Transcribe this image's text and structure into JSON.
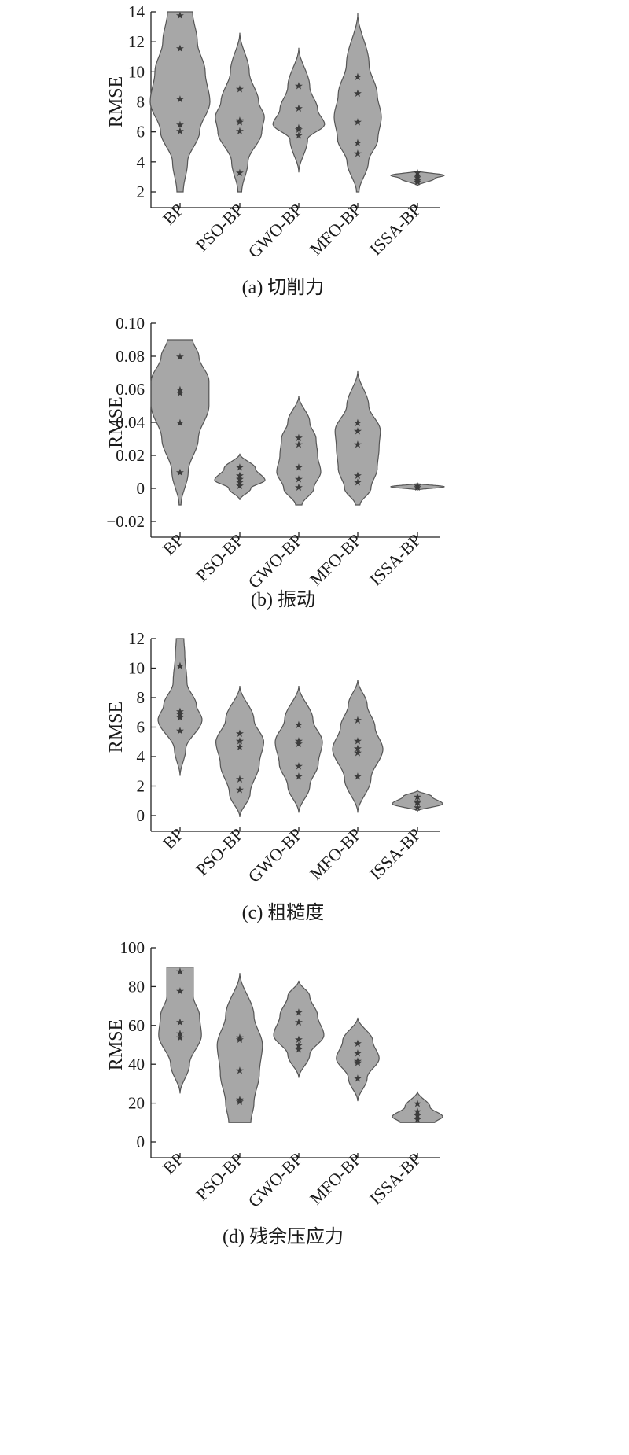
{
  "chart_data": [
    {
      "type": "violin",
      "caption": "(a) 切削力",
      "ylabel": "RMSE",
      "ylim": [
        2,
        14
      ],
      "yticks": [
        2,
        4,
        6,
        8,
        10,
        12,
        14
      ],
      "ytick_labels": [
        "2",
        "4",
        "6",
        "8",
        "10",
        "12",
        "14"
      ],
      "categories": [
        "BP",
        "PSO-BP",
        "GWO-BP",
        "MFO-BP",
        "ISSA-BP"
      ],
      "series": [
        {
          "points": [
            13.8,
            11.6,
            8.2,
            6.5,
            6.1
          ],
          "profile": [
            [
              2,
              0.1
            ],
            [
              4,
              0.24
            ],
            [
              6,
              0.62
            ],
            [
              8,
              0.95
            ],
            [
              10,
              0.8
            ],
            [
              12,
              0.55
            ],
            [
              14,
              0.4
            ]
          ]
        },
        {
          "points": [
            8.9,
            6.8,
            6.7,
            6.1,
            3.3
          ],
          "profile": [
            [
              2,
              0.06
            ],
            [
              4,
              0.26
            ],
            [
              6,
              0.7
            ],
            [
              7,
              0.78
            ],
            [
              8,
              0.6
            ],
            [
              10,
              0.3
            ],
            [
              12.6,
              0.0
            ]
          ]
        },
        {
          "points": [
            9.1,
            7.6,
            6.3,
            6.2,
            5.8
          ],
          "profile": [
            [
              3.3,
              0.0
            ],
            [
              5.5,
              0.28
            ],
            [
              6.5,
              0.82
            ],
            [
              7.5,
              0.6
            ],
            [
              9,
              0.35
            ],
            [
              11.6,
              0.0
            ]
          ]
        },
        {
          "points": [
            9.7,
            8.6,
            6.7,
            5.3,
            4.6
          ],
          "profile": [
            [
              2,
              0.04
            ],
            [
              4,
              0.34
            ],
            [
              5.5,
              0.64
            ],
            [
              7,
              0.75
            ],
            [
              8.5,
              0.62
            ],
            [
              10.5,
              0.36
            ],
            [
              13.9,
              0.0
            ]
          ]
        },
        {
          "points": [
            3.3,
            3.1,
            3.0,
            2.8,
            2.7
          ],
          "profile": [
            [
              2.4,
              0.0
            ],
            [
              2.9,
              0.55
            ],
            [
              3.1,
              0.85
            ],
            [
              3.4,
              0.0
            ]
          ]
        }
      ]
    },
    {
      "type": "violin",
      "caption": "(b) 振动",
      "ylabel": "RMSE",
      "ylim": [
        -0.02,
        0.1
      ],
      "yticks": [
        -0.02,
        0,
        0.02,
        0.04,
        0.06,
        0.08,
        0.1
      ],
      "ytick_labels": [
        "−0.02",
        "0",
        "0.02",
        "0.04",
        "0.06",
        "0.08",
        "0.10"
      ],
      "categories": [
        "BP",
        "PSO-BP",
        "GWO-BP",
        "MFO-BP",
        "ISSA-BP"
      ],
      "series": [
        {
          "points": [
            0.08,
            0.06,
            0.058,
            0.04,
            0.01
          ],
          "profile": [
            [
              -0.01,
              0.03
            ],
            [
              0.01,
              0.26
            ],
            [
              0.03,
              0.58
            ],
            [
              0.05,
              0.92
            ],
            [
              0.065,
              0.92
            ],
            [
              0.08,
              0.6
            ],
            [
              0.09,
              0.4
            ]
          ]
        },
        {
          "points": [
            0.013,
            0.008,
            0.006,
            0.004,
            0.002
          ],
          "profile": [
            [
              -0.007,
              0.0
            ],
            [
              0.0,
              0.35
            ],
            [
              0.005,
              0.8
            ],
            [
              0.012,
              0.5
            ],
            [
              0.021,
              0.0
            ]
          ]
        },
        {
          "points": [
            0.031,
            0.027,
            0.013,
            0.006,
            0.001
          ],
          "profile": [
            [
              -0.01,
              0.1
            ],
            [
              0.0,
              0.48
            ],
            [
              0.01,
              0.7
            ],
            [
              0.02,
              0.6
            ],
            [
              0.03,
              0.55
            ],
            [
              0.04,
              0.35
            ],
            [
              0.056,
              0.0
            ]
          ]
        },
        {
          "points": [
            0.04,
            0.035,
            0.027,
            0.008,
            0.004
          ],
          "profile": [
            [
              -0.01,
              0.07
            ],
            [
              0.0,
              0.42
            ],
            [
              0.012,
              0.62
            ],
            [
              0.025,
              0.68
            ],
            [
              0.035,
              0.72
            ],
            [
              0.05,
              0.35
            ],
            [
              0.071,
              0.0
            ]
          ]
        },
        {
          "points": [
            0.002,
            0.001
          ],
          "profile": [
            [
              -0.001,
              0.0
            ],
            [
              0.001,
              0.85
            ],
            [
              0.003,
              0.0
            ]
          ]
        }
      ]
    },
    {
      "type": "violin",
      "caption": "(c) 粗糙度",
      "ylabel": "RMSE",
      "ylim": [
        0,
        12
      ],
      "yticks": [
        0,
        2,
        4,
        6,
        8,
        10,
        12
      ],
      "ytick_labels": [
        "0",
        "2",
        "4",
        "6",
        "8",
        "10",
        "12"
      ],
      "categories": [
        "BP",
        "PSO-BP",
        "GWO-BP",
        "MFO-BP",
        "ISSA-BP"
      ],
      "series": [
        {
          "points": [
            10.2,
            7.1,
            6.9,
            6.7,
            5.8
          ],
          "profile": [
            [
              2.7,
              0.0
            ],
            [
              4.5,
              0.18
            ],
            [
              6.5,
              0.7
            ],
            [
              7.5,
              0.52
            ],
            [
              9,
              0.22
            ],
            [
              11,
              0.15
            ],
            [
              12,
              0.12
            ]
          ]
        },
        {
          "points": [
            5.6,
            5.1,
            4.7,
            2.5,
            1.8
          ],
          "profile": [
            [
              -0.1,
              0.0
            ],
            [
              1.5,
              0.33
            ],
            [
              3.5,
              0.62
            ],
            [
              5,
              0.76
            ],
            [
              6.5,
              0.45
            ],
            [
              8.8,
              0.0
            ]
          ]
        },
        {
          "points": [
            6.2,
            5.1,
            4.9,
            3.4,
            2.7
          ],
          "profile": [
            [
              0.2,
              0.0
            ],
            [
              2,
              0.35
            ],
            [
              3.5,
              0.62
            ],
            [
              5,
              0.75
            ],
            [
              6.5,
              0.45
            ],
            [
              8.8,
              0.0
            ]
          ]
        },
        {
          "points": [
            6.5,
            5.1,
            4.6,
            4.3,
            2.7
          ],
          "profile": [
            [
              0.2,
              0.0
            ],
            [
              2.5,
              0.42
            ],
            [
              4.5,
              0.8
            ],
            [
              6,
              0.55
            ],
            [
              7.5,
              0.3
            ],
            [
              9.2,
              0.0
            ]
          ]
        },
        {
          "points": [
            1.3,
            1.0,
            0.9,
            0.6
          ],
          "profile": [
            [
              0.3,
              0.0
            ],
            [
              0.8,
              0.8
            ],
            [
              1.3,
              0.45
            ],
            [
              1.7,
              0.0
            ]
          ]
        }
      ]
    },
    {
      "type": "violin",
      "caption": "(d) 残余压应力",
      "ylabel": "RMSE",
      "ylim": [
        0,
        100
      ],
      "yticks": [
        0,
        20,
        40,
        60,
        80,
        100
      ],
      "ytick_labels": [
        "0",
        "20",
        "40",
        "60",
        "80",
        "100"
      ],
      "categories": [
        "BP",
        "PSO-BP",
        "GWO-BP",
        "MFO-BP",
        "ISSA-BP"
      ],
      "series": [
        {
          "points": [
            88,
            78,
            62,
            56,
            54
          ],
          "profile": [
            [
              25,
              0.0
            ],
            [
              40,
              0.3
            ],
            [
              55,
              0.68
            ],
            [
              65,
              0.62
            ],
            [
              75,
              0.42
            ],
            [
              90,
              0.42
            ]
          ]
        },
        {
          "points": [
            54,
            53,
            37,
            22,
            21
          ],
          "profile": [
            [
              10,
              0.35
            ],
            [
              20,
              0.45
            ],
            [
              35,
              0.62
            ],
            [
              50,
              0.72
            ],
            [
              65,
              0.45
            ],
            [
              87,
              0.0
            ]
          ]
        },
        {
          "points": [
            67,
            62,
            53,
            50,
            48
          ],
          "profile": [
            [
              33,
              0.0
            ],
            [
              45,
              0.35
            ],
            [
              55,
              0.8
            ],
            [
              65,
              0.6
            ],
            [
              75,
              0.35
            ],
            [
              83,
              0.0
            ]
          ]
        },
        {
          "points": [
            51,
            46,
            42,
            41,
            33
          ],
          "profile": [
            [
              21,
              0.0
            ],
            [
              33,
              0.3
            ],
            [
              43,
              0.68
            ],
            [
              52,
              0.48
            ],
            [
              64,
              0.0
            ]
          ]
        },
        {
          "points": [
            20,
            16,
            14,
            12
          ],
          "profile": [
            [
              10,
              0.55
            ],
            [
              13,
              0.8
            ],
            [
              18,
              0.4
            ],
            [
              26,
              0.0
            ]
          ]
        }
      ]
    }
  ]
}
